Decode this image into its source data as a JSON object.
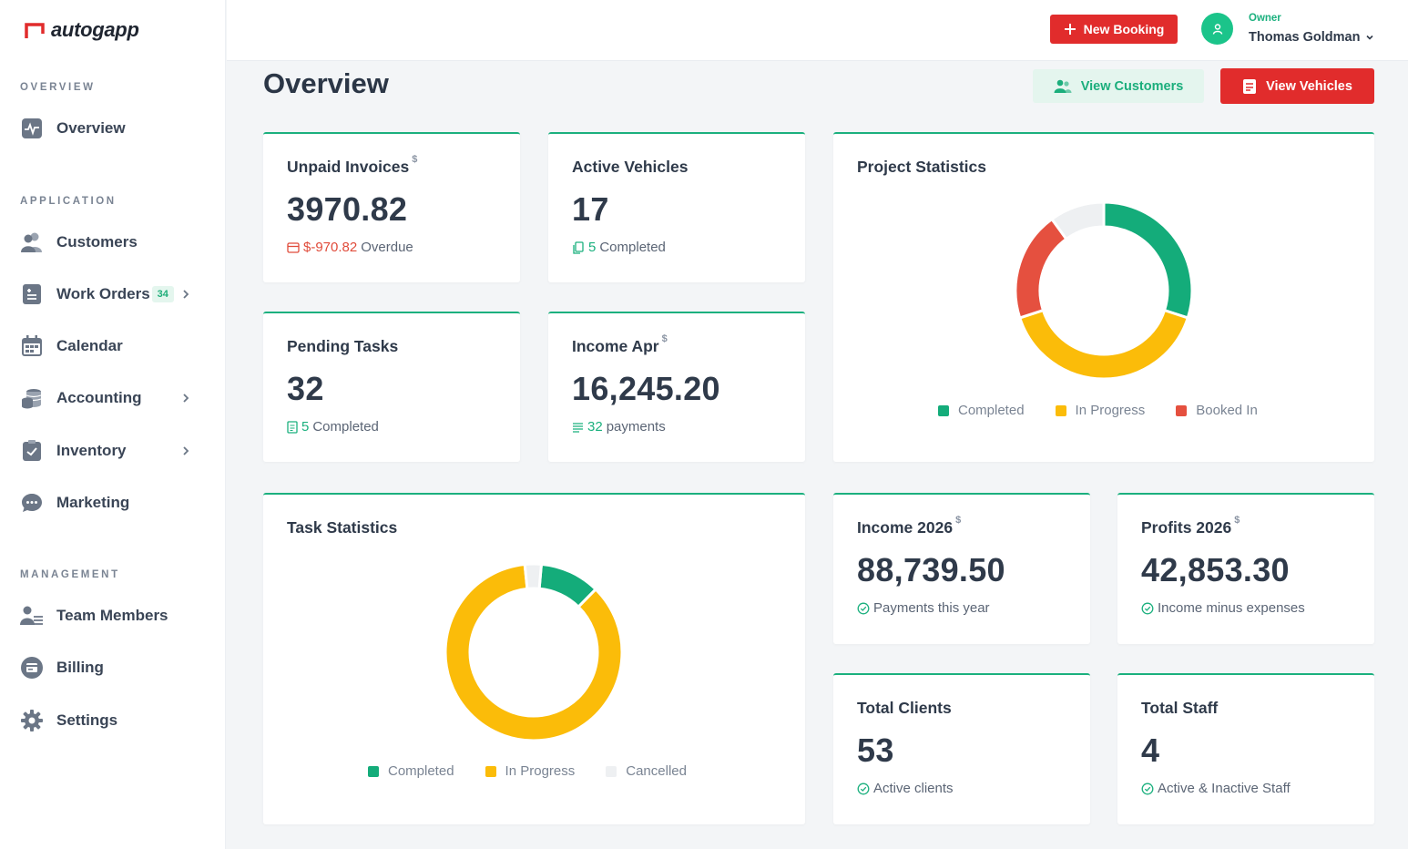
{
  "app": {
    "name": "autogapp"
  },
  "sidebar": {
    "sections": {
      "overview": "OVERVIEW",
      "application": "APPLICATION",
      "management": "MANAGEMENT"
    },
    "items": {
      "overview": "Overview",
      "customers": "Customers",
      "work_orders": "Work Orders",
      "work_orders_badge": "34",
      "calendar": "Calendar",
      "accounting": "Accounting",
      "inventory": "Inventory",
      "marketing": "Marketing",
      "team_members": "Team Members",
      "billing": "Billing",
      "settings": "Settings"
    }
  },
  "topbar": {
    "new_booking": "New Booking",
    "owner_role": "Owner",
    "owner_name": "Thomas Goldman"
  },
  "page": {
    "title": "Overview",
    "view_customers": "View Customers",
    "view_vehicles": "View Vehicles"
  },
  "cards": {
    "unpaid": {
      "title": "Unpaid Invoices",
      "unit": "$",
      "value": "3970.82",
      "sub_num": "$-970.82",
      "sub_text": "Overdue"
    },
    "active_vehicles": {
      "title": "Active Vehicles",
      "value": "17",
      "sub_num": "5",
      "sub_text": "Completed"
    },
    "pending_tasks": {
      "title": "Pending Tasks",
      "value": "32",
      "sub_num": "5",
      "sub_text": "Completed"
    },
    "income_apr": {
      "title": "Income Apr",
      "unit": "$",
      "value": "16,245.20",
      "sub_num": "32",
      "sub_text": "payments"
    },
    "income_year": {
      "title": "Income 2026",
      "unit": "$",
      "value": "88,739.50",
      "sub_text": "Payments this year"
    },
    "profits_year": {
      "title": "Profits 2026",
      "unit": "$",
      "value": "42,853.30",
      "sub_text": "Income minus expenses"
    },
    "total_clients": {
      "title": "Total Clients",
      "value": "53",
      "sub_text": "Active clients"
    },
    "total_staff": {
      "title": "Total Staff",
      "value": "4",
      "sub_text": "Active & Inactive Staff"
    }
  },
  "chart_data": [
    {
      "type": "pie",
      "title": "Project Statistics",
      "categories": [
        "Completed",
        "In Progress",
        "Booked In",
        "Other"
      ],
      "values": [
        30,
        40,
        20,
        10
      ],
      "colors": [
        "#14ac7a",
        "#fbbc09",
        "#e5503f",
        "#eef0f2"
      ]
    },
    {
      "type": "pie",
      "title": "Task Statistics",
      "categories": [
        "Completed",
        "In Progress",
        "Cancelled"
      ],
      "values": [
        11,
        86,
        3
      ],
      "colors": [
        "#14ac7a",
        "#fbbc09",
        "#eef0f2"
      ]
    }
  ],
  "colors": {
    "accent_green": "#1bb07e",
    "accent_red": "#e12c2c"
  }
}
